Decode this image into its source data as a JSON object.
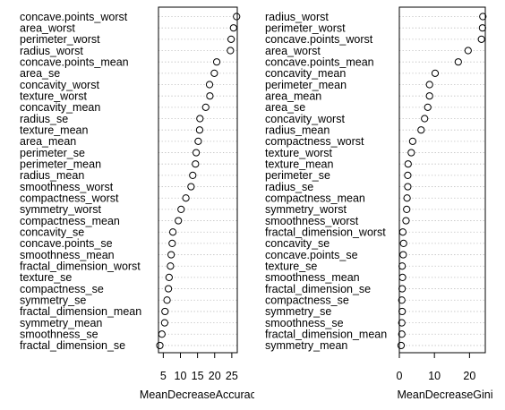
{
  "chart_data": [
    {
      "type": "dotchart",
      "xlabel": "MeanDecreaseAccuracy",
      "xticks": [
        5,
        10,
        15,
        20,
        25
      ],
      "xlim": [
        3.6,
        26.6
      ],
      "grid": "dotted horizontal lines per row",
      "categories": [
        "concave.points_worst",
        "area_worst",
        "perimeter_worst",
        "radius_worst",
        "concave.points_mean",
        "area_se",
        "concavity_worst",
        "texture_worst",
        "concavity_mean",
        "radius_se",
        "texture_mean",
        "area_mean",
        "perimeter_se",
        "perimeter_mean",
        "radius_mean",
        "smoothness_worst",
        "compactness_worst",
        "symmetry_worst",
        "compactness_mean",
        "concavity_se",
        "concave.points_se",
        "smoothness_mean",
        "fractal_dimension_worst",
        "texture_se",
        "compactness_se",
        "symmetry_se",
        "fractal_dimension_mean",
        "symmetry_mean",
        "smoothness_se",
        "fractal_dimension_se"
      ],
      "values": [
        26.4,
        25.5,
        24.8,
        24.6,
        20.6,
        19.9,
        18.5,
        18.6,
        17.4,
        15.7,
        15.6,
        15.2,
        14.6,
        14.4,
        13.6,
        13.1,
        11.6,
        10.2,
        9.4,
        7.8,
        7.6,
        7.3,
        7.1,
        6.7,
        6.5,
        6.1,
        5.5,
        5.4,
        4.6,
        4.0
      ]
    },
    {
      "type": "dotchart",
      "xlabel": "MeanDecreaseGini",
      "xticks": [
        0,
        10,
        20
      ],
      "xlim": [
        0,
        24.5
      ],
      "grid": "dotted horizontal lines per row",
      "categories": [
        "radius_worst",
        "perimeter_worst",
        "concave.points_worst",
        "area_worst",
        "concave.points_mean",
        "concavity_mean",
        "perimeter_mean",
        "area_mean",
        "area_se",
        "concavity_worst",
        "radius_mean",
        "compactness_worst",
        "texture_worst",
        "texture_mean",
        "perimeter_se",
        "radius_se",
        "compactness_mean",
        "symmetry_worst",
        "smoothness_worst",
        "fractal_dimension_worst",
        "concavity_se",
        "concave.points_se",
        "texture_se",
        "smoothness_mean",
        "fractal_dimension_se",
        "compactness_se",
        "symmetry_se",
        "smoothness_se",
        "fractal_dimension_mean",
        "symmetry_mean"
      ],
      "values": [
        23.8,
        23.7,
        23.4,
        19.6,
        16.8,
        10.2,
        8.6,
        8.6,
        8.1,
        7.2,
        6.2,
        3.8,
        3.4,
        2.5,
        2.4,
        2.4,
        2.2,
        2.1,
        1.9,
        1.0,
        1.2,
        1.1,
        0.8,
        0.9,
        0.8,
        0.7,
        0.8,
        0.7,
        0.7,
        0.5
      ]
    }
  ]
}
